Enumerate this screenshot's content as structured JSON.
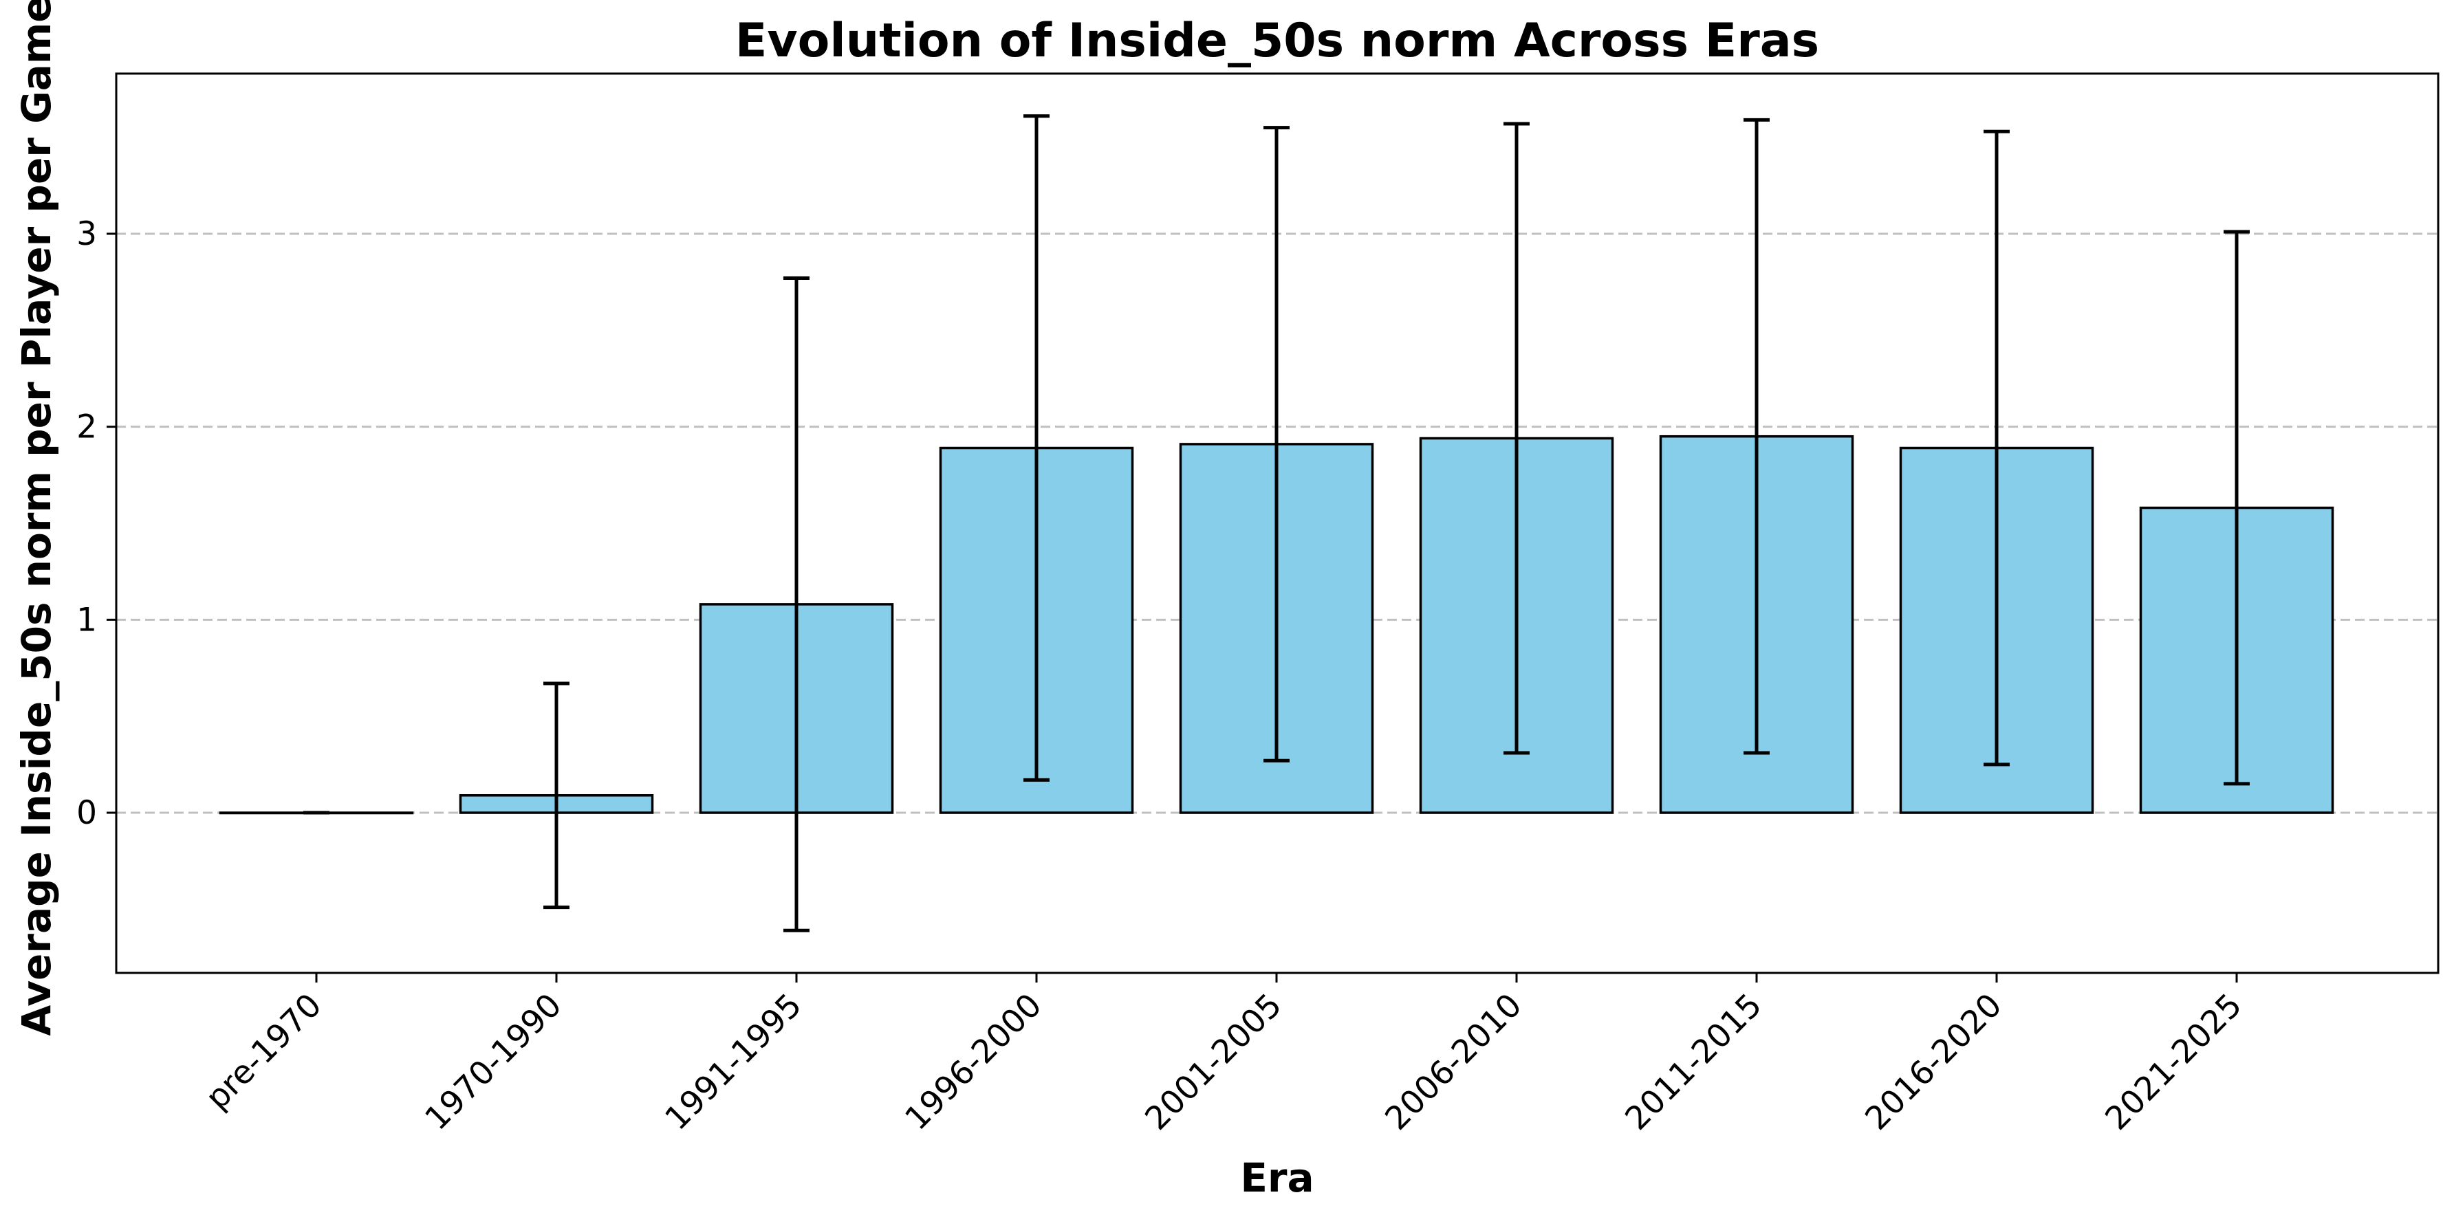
{
  "chart_data": {
    "type": "bar",
    "title": "Evolution of Inside_50s norm Across Eras",
    "xlabel": "Era",
    "ylabel": "Average Inside_50s norm per Player per Game",
    "categories": [
      "pre-1970",
      "1970-1990",
      "1991-1995",
      "1996-2000",
      "2001-2005",
      "2006-2010",
      "2011-2015",
      "2016-2020",
      "2021-2025"
    ],
    "values": [
      0.0,
      0.09,
      1.08,
      1.89,
      1.91,
      1.94,
      1.95,
      1.89,
      1.58
    ],
    "error": [
      0.0,
      0.58,
      1.69,
      1.72,
      1.64,
      1.63,
      1.64,
      1.64,
      1.43
    ],
    "ylim": [
      -0.83,
      3.83
    ],
    "yticks": [
      0,
      1,
      2,
      3
    ],
    "grid": "horizontal dashed",
    "bar_color": "#87CEEB",
    "edge_color": "#000000",
    "legend": "none"
  }
}
